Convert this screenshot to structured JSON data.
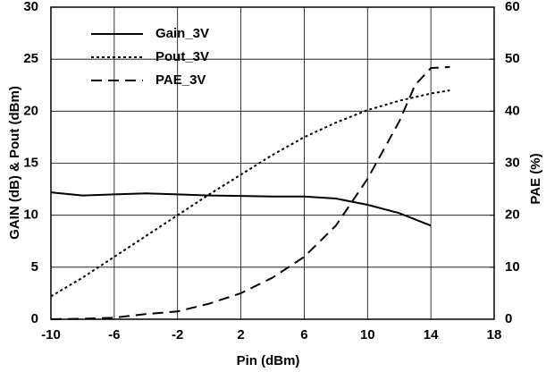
{
  "chart_data": {
    "type": "line",
    "x_label": "Pin (dBm)",
    "y_label": "GAIN (dB) & Pout (dBm)",
    "y2_label": "PAE (%)",
    "xlim": [
      -10,
      18
    ],
    "xticks": [
      -10,
      -6,
      -2,
      2,
      6,
      10,
      14,
      18
    ],
    "ylim": [
      0,
      30
    ],
    "yticks": [
      0,
      5,
      10,
      15,
      20,
      25,
      30
    ],
    "y2lim": [
      0,
      60
    ],
    "y2ticks": [
      0,
      10,
      20,
      30,
      40,
      50,
      60
    ],
    "grid": true,
    "legend": "upper left",
    "series": [
      {
        "name": "Gain_3V",
        "color": "#000000",
        "dash": "solid",
        "x": [
          -10,
          -8,
          -6,
          -4,
          -2,
          0,
          2,
          4,
          6,
          8,
          10,
          12,
          14
        ],
        "values": [
          12.2,
          11.9,
          12.0,
          12.1,
          12.0,
          11.9,
          11.85,
          11.8,
          11.8,
          11.6,
          11.0,
          10.2,
          9.0
        ]
      },
      {
        "name": "Pout_3V",
        "color": "#000000",
        "dash": "dotted",
        "x": [
          -10,
          -8,
          -6,
          -4,
          -2,
          0,
          2,
          4,
          6,
          8,
          10,
          12,
          14,
          15.2
        ],
        "values": [
          2.2,
          4.0,
          6.0,
          8.0,
          10.0,
          12.0,
          13.9,
          15.8,
          17.5,
          18.9,
          20.1,
          21.0,
          21.7,
          22.0
        ]
      },
      {
        "name": "PAE_3V",
        "color": "#000000",
        "dash": "dashed",
        "axis": "y2",
        "x": [
          -10,
          -8,
          -6,
          -4,
          -2,
          0,
          2,
          4,
          6,
          8,
          10,
          12,
          13,
          14,
          15.2
        ],
        "values": [
          0,
          0.1,
          0.3,
          1,
          1.5,
          3,
          5,
          8,
          12,
          18,
          27,
          38,
          45,
          48.3,
          48.5
        ]
      }
    ]
  }
}
